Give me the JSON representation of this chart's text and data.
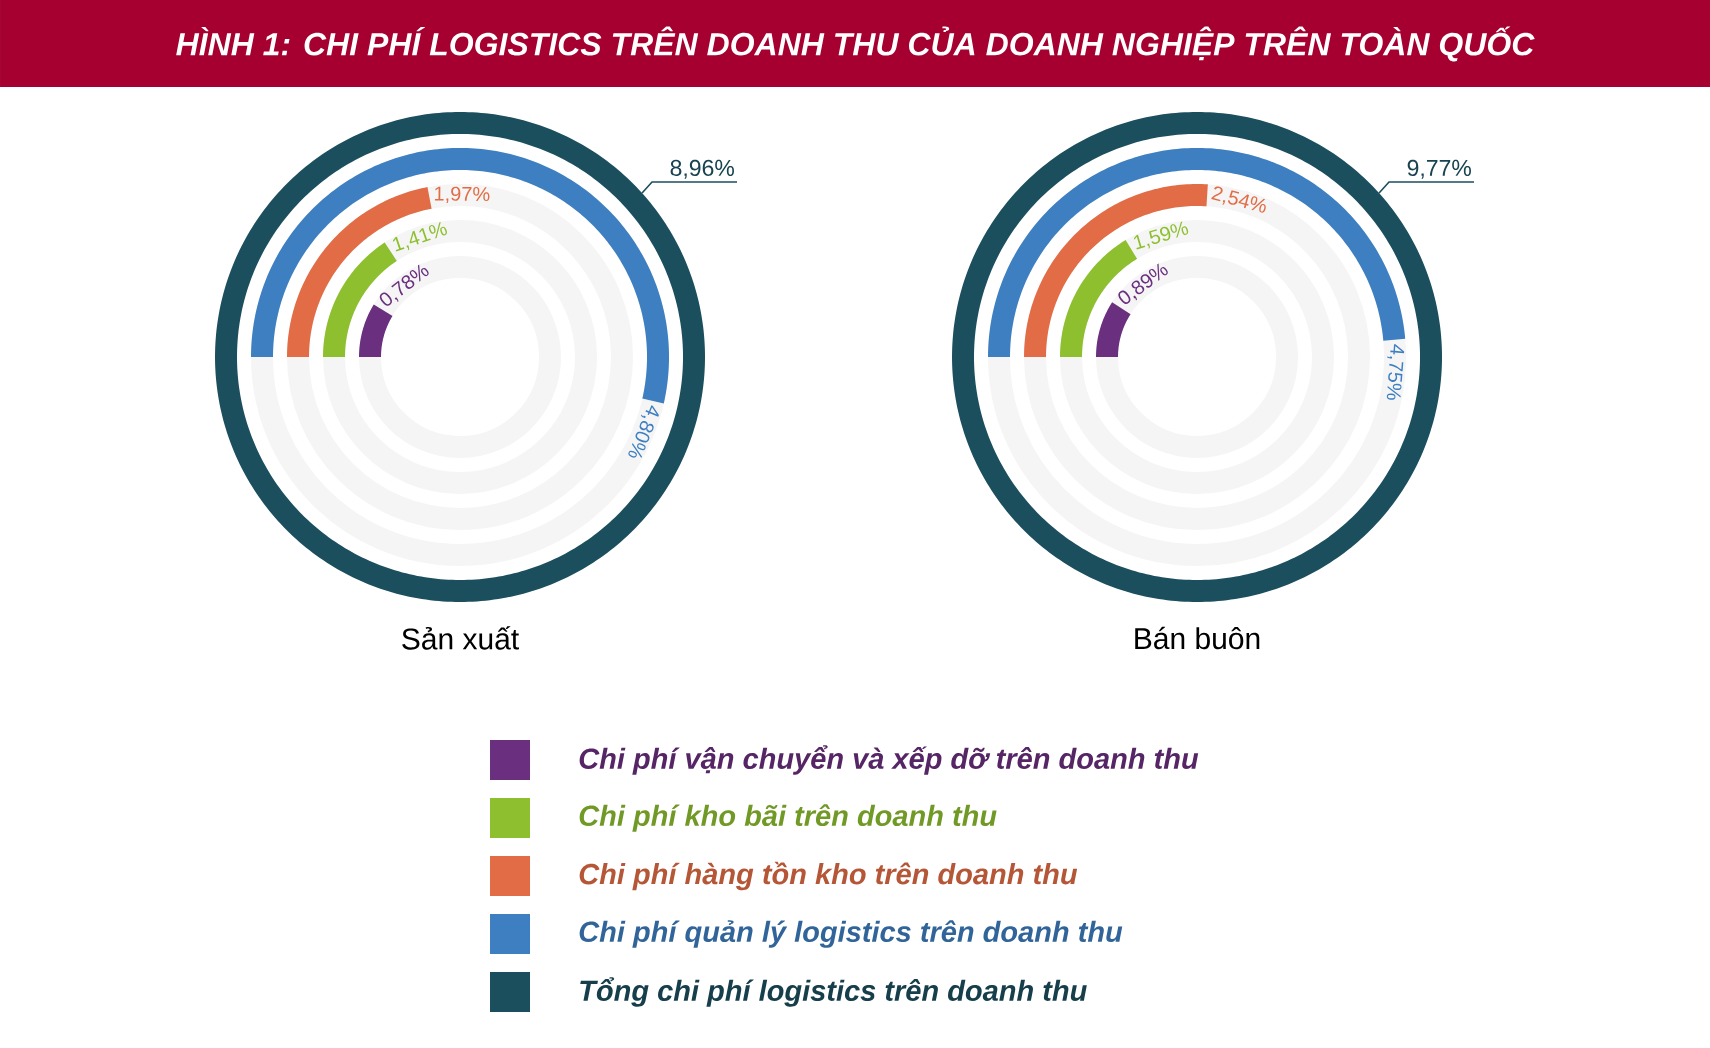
{
  "chart_data": {
    "type": "other",
    "title": "HÌNH 1: CHI PHÍ LOGISTICS TRÊN DOANH THU CỦA DOANH NGHIỆP TRÊN TOÀN QUỐC",
    "categories": [
      "Sản xuất",
      "Bán buôn"
    ],
    "series": [
      {
        "name": "Chi phí vận chuyển và xếp dỡ trên doanh thu",
        "color": "#6a2f7e",
        "values": [
          0.78,
          0.89
        ],
        "value_labels": [
          "0,78%",
          "0,89%"
        ]
      },
      {
        "name": "Chi phí kho bãi trên doanh thu",
        "color": "#8dbf2e",
        "values": [
          1.41,
          1.59
        ],
        "value_labels": [
          "1,41%",
          "1,59%"
        ]
      },
      {
        "name": "Chi phí hàng tồn kho trên doanh thu",
        "color": "#e26c45",
        "values": [
          1.97,
          2.54
        ],
        "value_labels": [
          "1,97%",
          "2,54%"
        ]
      },
      {
        "name": "Chi phí quản lý logistics trên doanh thu",
        "color": "#3d7fc0",
        "values": [
          4.8,
          4.75
        ],
        "value_labels": [
          "4,80%",
          "4,75%"
        ]
      },
      {
        "name": "Tổng chi phí logistics trên doanh thu",
        "color": "#1c4f5e",
        "values": [
          8.96,
          9.77
        ],
        "value_labels": [
          "8,96%",
          "9,77%"
        ]
      }
    ],
    "legend": "bottom"
  }
}
